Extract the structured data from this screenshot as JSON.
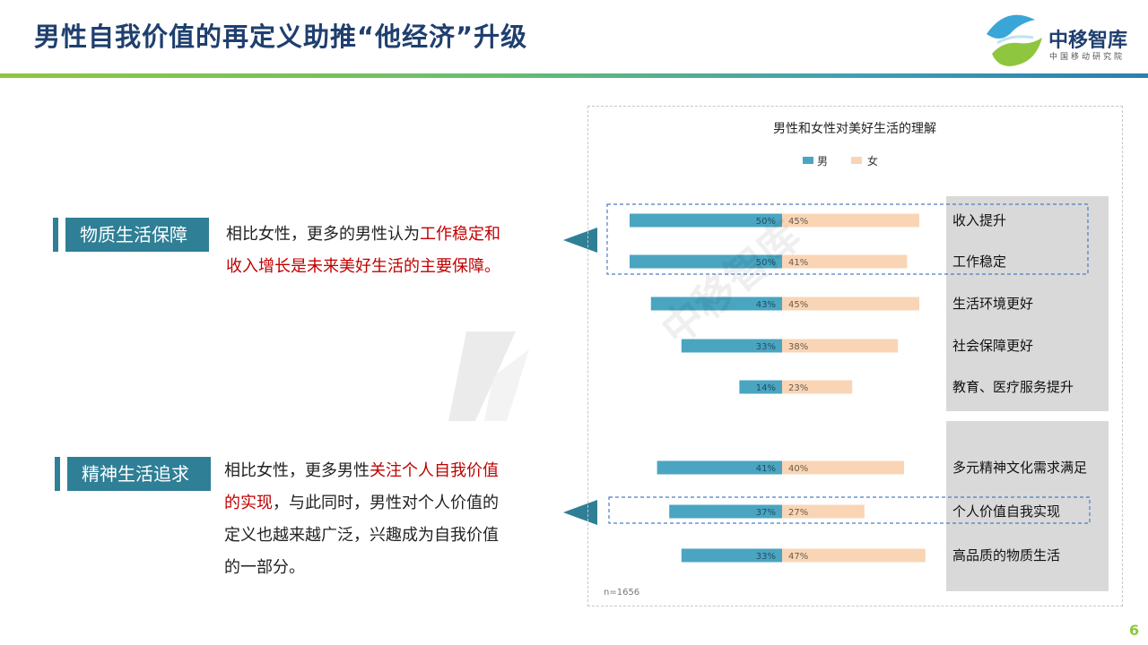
{
  "slide": {
    "title": "男性自我价值的再定义助推“他经济”升级",
    "page_number": "6",
    "colors": {
      "male": "#4aa5c1",
      "female": "#f9d5b6",
      "accent_red": "#c00000",
      "title_blue": "#1f3f6e",
      "label_teal": "#2f7f96"
    }
  },
  "logo": {
    "name": "中移智库",
    "subtitle": "中国移动研究院",
    "icon": "china-mobile-logo-icon"
  },
  "sections": [
    {
      "label": "物质生活保障",
      "lines": [
        [
          {
            "text": "相比女性，更多的男性认为",
            "red": false
          },
          {
            "text": "工作稳定和",
            "red": true
          }
        ],
        [
          {
            "text": "收入增长是未来美好生活的主要保障。",
            "red": true
          }
        ]
      ]
    },
    {
      "label": "精神生活追求",
      "lines": [
        [
          {
            "text": "相比女性，更多男性",
            "red": false
          },
          {
            "text": "关注个人自我价值",
            "red": true
          }
        ],
        [
          {
            "text": "的实现",
            "red": true
          },
          {
            "text": "，与此同时，男性对个人价值的",
            "red": false
          }
        ],
        [
          {
            "text": "定义也越来越广泛，兴趣成为自我价值",
            "red": false
          }
        ],
        [
          {
            "text": "的一部分。",
            "red": false
          }
        ]
      ]
    }
  ],
  "chart_data": {
    "type": "bar",
    "title": "男性和女性对美好生活的理解",
    "legend_position": "top-center",
    "note": "n=1656",
    "series": [
      {
        "name": "男",
        "color": "#4aa5c1"
      },
      {
        "name": "女",
        "color": "#f9d5b6"
      }
    ],
    "groups": [
      {
        "items": [
          {
            "category": "收入提升",
            "male": 50,
            "female": 45,
            "highlight": true
          },
          {
            "category": "工作稳定",
            "male": 50,
            "female": 41,
            "highlight": true
          },
          {
            "category": "生活环境更好",
            "male": 43,
            "female": 45,
            "highlight": false
          },
          {
            "category": "社会保障更好",
            "male": 33,
            "female": 38,
            "highlight": false
          },
          {
            "category": "教育、医疗服务提升",
            "male": 14,
            "female": 23,
            "highlight": false
          }
        ]
      },
      {
        "items": [
          {
            "category": "多元精神文化需求满足",
            "male": 41,
            "female": 40,
            "highlight": false
          },
          {
            "category": "个人价值自我实现",
            "male": 37,
            "female": 27,
            "highlight": true
          },
          {
            "category": "高品质的物质生活",
            "male": 33,
            "female": 47,
            "highlight": false
          }
        ]
      }
    ]
  }
}
